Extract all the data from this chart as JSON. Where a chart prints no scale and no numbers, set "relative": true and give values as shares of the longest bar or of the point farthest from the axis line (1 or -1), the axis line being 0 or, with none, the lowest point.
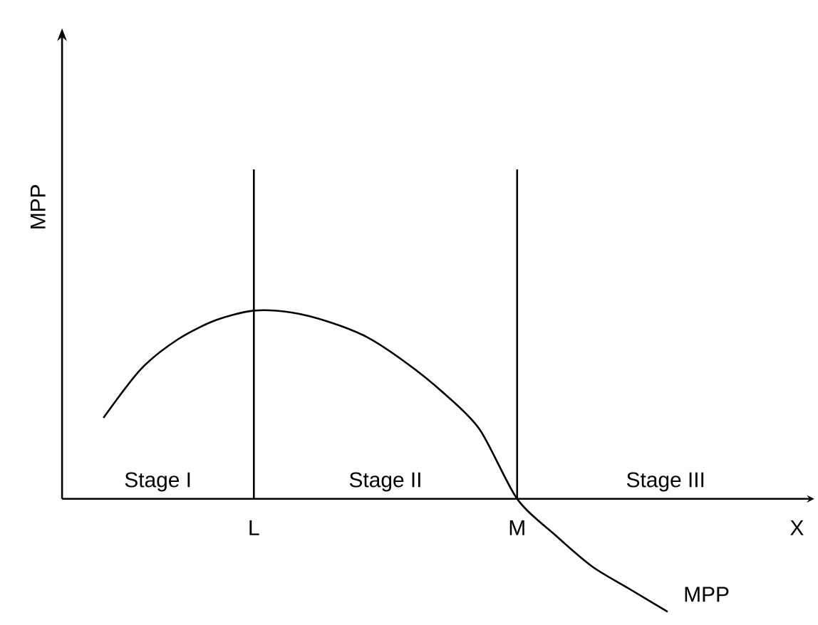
{
  "chart_data": {
    "type": "line",
    "relative": true,
    "ylabel": "MPP",
    "xlabel": "X",
    "categories": [
      null,
      null,
      null,
      null,
      "L",
      null,
      null,
      null,
      null,
      null,
      null,
      "M",
      null,
      null,
      null,
      null
    ],
    "series": [
      {
        "name": "MPP",
        "color": "#000000",
        "values": [
          0.43,
          0.69,
          0.85,
          0.95,
          1.0,
          0.99,
          0.94,
          0.86,
          0.73,
          0.57,
          0.37,
          0,
          -0.19,
          -0.36,
          -0.48,
          -0.6
        ]
      }
    ],
    "ref_lines": [
      {
        "axis": "x",
        "value": "L",
        "color": "#000000"
      },
      {
        "axis": "x",
        "value": "M",
        "color": "#000000"
      }
    ],
    "annotations": [
      "Stage I",
      "Stage II",
      "Stage III"
    ],
    "legend": false,
    "marker": "none",
    "line_style": "solid"
  }
}
